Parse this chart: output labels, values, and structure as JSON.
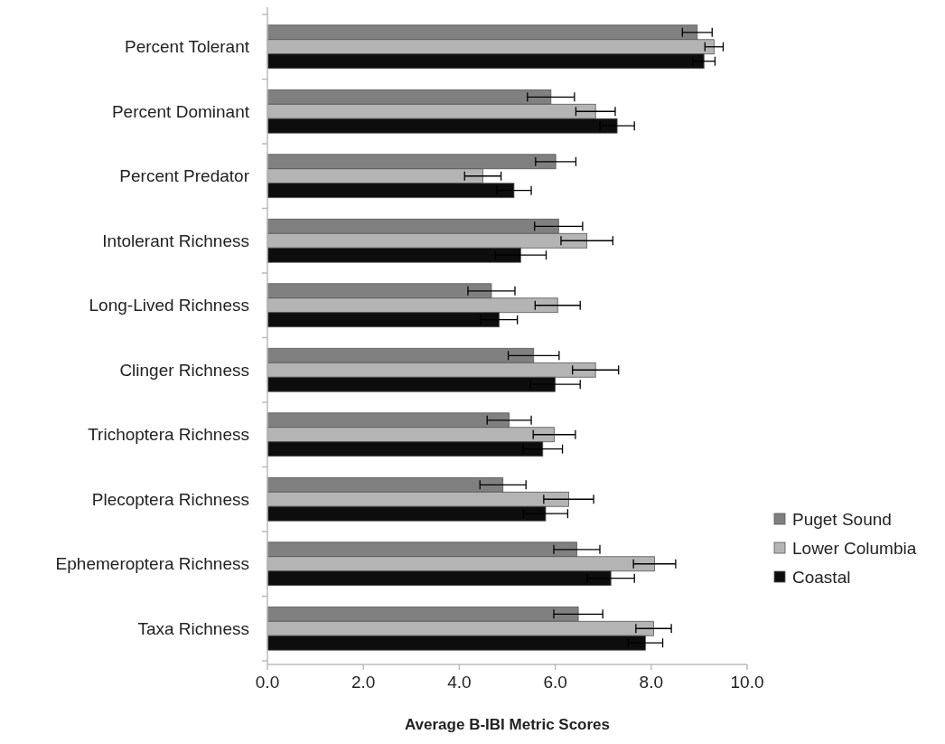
{
  "chart_data": {
    "type": "bar",
    "orientation": "horizontal",
    "xlabel": "Average B-IBI Metric Scores",
    "categories": [
      "Percent Tolerant",
      "Percent Dominant",
      "Percent Predator",
      "Intolerant Richness",
      "Long-Lived Richness",
      "Clinger Richness",
      "Trichoptera Richness",
      "Plecoptera Richness",
      "Ephemeroptera Richness",
      "Taxa Richness"
    ],
    "series": [
      {
        "name": "Puget Sound",
        "color": "#808080",
        "values": [
          8.96,
          5.91,
          6.01,
          6.07,
          4.67,
          5.55,
          5.04,
          4.91,
          6.45,
          6.48
        ],
        "errors": [
          0.31,
          0.49,
          0.42,
          0.5,
          0.49,
          0.53,
          0.46,
          0.48,
          0.48,
          0.51
        ]
      },
      {
        "name": "Lower Columbia",
        "color": "#b4b4b4",
        "values": [
          9.31,
          6.84,
          4.49,
          6.66,
          6.05,
          6.84,
          5.98,
          6.28,
          8.07,
          8.05
        ],
        "errors": [
          0.19,
          0.41,
          0.38,
          0.54,
          0.47,
          0.48,
          0.44,
          0.52,
          0.44,
          0.37
        ]
      },
      {
        "name": "Coastal",
        "color": "#0d0d0d",
        "values": [
          9.1,
          7.29,
          5.14,
          5.28,
          4.83,
          6.0,
          5.74,
          5.8,
          7.16,
          7.88
        ],
        "errors": [
          0.23,
          0.36,
          0.36,
          0.53,
          0.38,
          0.52,
          0.41,
          0.46,
          0.49,
          0.36
        ]
      }
    ],
    "xlim": [
      0,
      10
    ],
    "xticks": [
      {
        "value": 0,
        "label": "0.0"
      },
      {
        "value": 2,
        "label": "2.0"
      },
      {
        "value": 4,
        "label": "4.0"
      },
      {
        "value": 6,
        "label": "6.0"
      },
      {
        "value": 8,
        "label": "8.0"
      },
      {
        "value": 10,
        "label": "10.0"
      }
    ],
    "grid": false,
    "legend": "right"
  }
}
